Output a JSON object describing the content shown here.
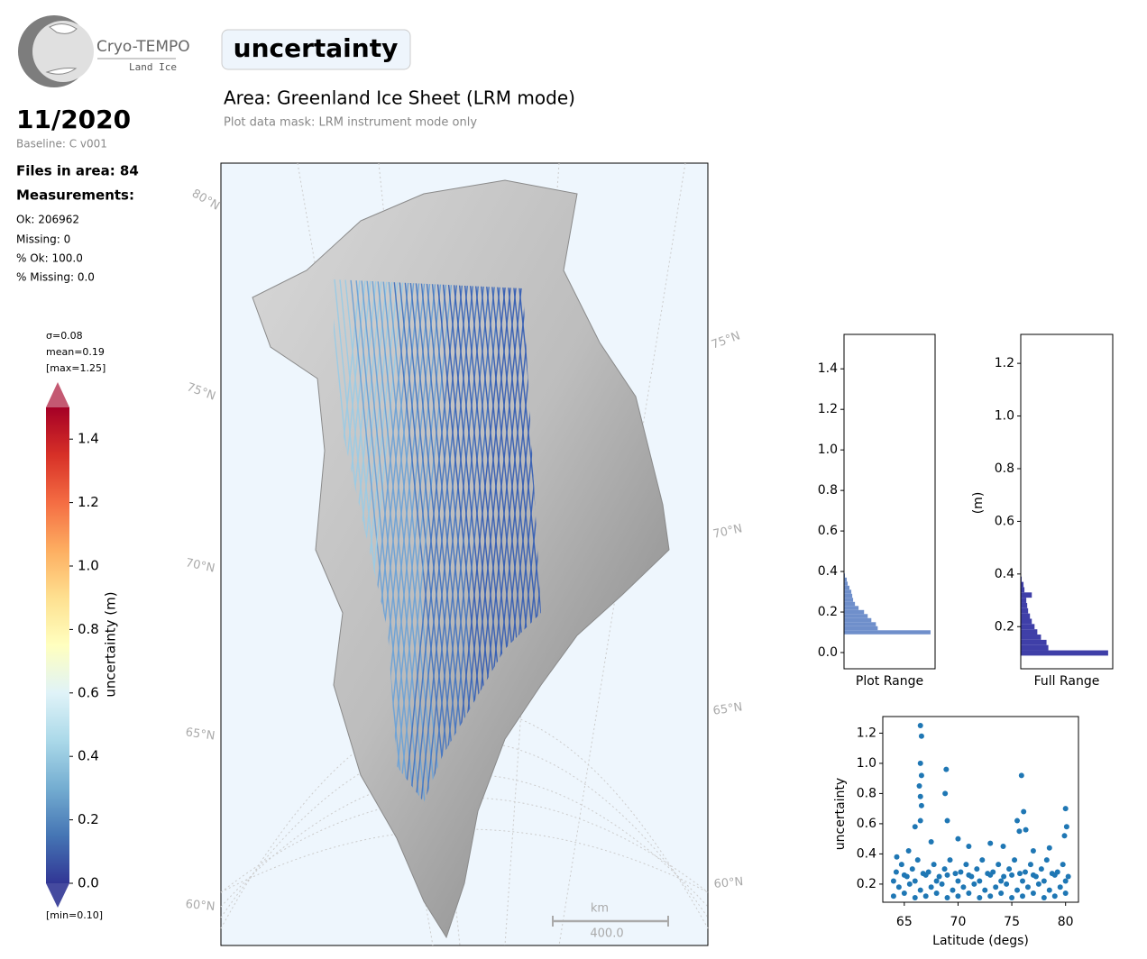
{
  "header": {
    "logo_title": "Cryo-TEMPO",
    "logo_subtitle": "Land Ice",
    "date": "11/2020",
    "baseline": "Baseline: C v001",
    "files": "Files in area: 84",
    "measurements": "Measurements:",
    "stats": [
      "Ok: 206962",
      "Missing: 0",
      "% Ok: 100.0",
      "% Missing: 0.0"
    ],
    "title": "uncertainty",
    "area": "Area: Greenland Ice Sheet (LRM mode)",
    "mask": "Plot data mask: LRM instrument mode only"
  },
  "chart_data": [
    {
      "type": "colorbar",
      "label": "uncertainty (m)",
      "ylim": [
        0,
        1.5
      ],
      "yticks": [
        {
          "value": 0,
          "label": "0.0"
        },
        0.2,
        0.4,
        0.6,
        0.8,
        {
          "value": 1,
          "label": "1.0"
        },
        1.2,
        1.4
      ],
      "colors": [
        "#313695",
        "#4575b4",
        "#74add1",
        "#abd9e9",
        "#e0f3f8",
        "#ffffbf",
        "#fee090",
        "#fdae61",
        "#f46d43",
        "#d73027",
        "#a50026"
      ],
      "stats_top": [
        "σ=0.08",
        "mean=0.19",
        "[max=1.25]"
      ],
      "stats_bottom": "[min=0.10]"
    },
    {
      "type": "map",
      "lat_labels_left": [
        "80°N",
        "75°N",
        "70°N",
        "65°N",
        "60°N"
      ],
      "lat_labels_right": [
        "75°N",
        "70°N",
        "65°N",
        "60°N"
      ],
      "scale_unit": "km",
      "scale_length": {
        "value": 400,
        "label": "400.0"
      },
      "background": "#eef6fd"
    },
    {
      "type": "histogram",
      "orientation": "horizontal",
      "xlabel": "Plot Range",
      "color": "#6f8fcb",
      "bins": [
        0.09,
        0.11,
        0.13,
        0.15,
        0.17,
        0.19,
        0.21,
        0.23,
        0.25,
        0.27,
        0.29,
        0.31,
        0.33,
        0.35,
        0.37,
        0.39
      ],
      "counts": [
        95,
        37,
        35,
        30,
        26,
        22,
        16,
        12,
        10,
        9,
        8,
        6,
        4,
        3,
        1
      ],
      "xlim": [
        0,
        100
      ],
      "ylim": [
        -0.08,
        1.57
      ],
      "yticks": [
        {
          "value": 0,
          "label": "0.0"
        },
        0.2,
        0.4,
        0.6,
        0.8,
        {
          "value": 1,
          "label": "1.0"
        },
        1.2,
        1.4
      ]
    },
    {
      "type": "histogram",
      "orientation": "horizontal",
      "xlabel": "Full Range",
      "ylabel": "(m)",
      "color": "#3f3fa8",
      "bins": [
        0.09,
        0.11,
        0.13,
        0.15,
        0.17,
        0.19,
        0.21,
        0.23,
        0.25,
        0.27,
        0.29,
        0.31,
        0.33,
        0.35,
        0.37,
        0.39
      ],
      "counts": [
        95,
        30,
        28,
        22,
        18,
        15,
        12,
        10,
        8,
        7,
        6,
        12,
        4,
        3,
        1
      ],
      "xlim": [
        0,
        100
      ],
      "ylim": [
        0.04,
        1.31
      ],
      "yticks": [
        0.2,
        0.4,
        0.6,
        0.8,
        {
          "value": 1,
          "label": "1.0"
        },
        1.2
      ]
    },
    {
      "type": "scatter",
      "xlabel": "Latitude (degs)",
      "ylabel": "uncertainty",
      "color": "#1f77b4",
      "xlim": [
        63,
        81.2
      ],
      "xticks": [
        65,
        70,
        75,
        80
      ],
      "ylim": [
        0.08,
        1.31
      ],
      "yticks": [
        0.2,
        0.4,
        0.6,
        0.8,
        {
          "value": 1,
          "label": "1.0"
        },
        1.2
      ],
      "x": [
        64,
        64.5,
        65,
        65.5,
        66,
        66.5,
        67,
        67.5,
        68,
        68.5,
        69,
        69.5,
        70,
        70.5,
        71,
        71.5,
        72,
        72.5,
        73,
        73.5,
        74,
        74.5,
        75,
        75.5,
        76,
        76.5,
        77,
        77.5,
        78,
        78.5,
        79,
        79.5,
        80,
        64.25,
        64.75,
        65.25,
        65.75,
        66.25,
        66.75,
        67.25,
        67.75,
        68.25,
        68.75,
        69.25,
        69.75,
        70.25,
        70.75,
        71.25,
        71.75,
        72.25,
        72.75,
        73.25,
        73.75,
        74.25,
        74.75,
        75.25,
        75.75,
        76.25,
        76.75,
        77.25,
        77.75,
        78.25,
        78.75,
        79.25,
        79.75,
        80.25,
        64,
        65,
        66,
        67,
        68,
        69,
        70,
        71,
        72,
        73,
        74,
        75,
        76,
        77,
        78,
        79,
        80,
        66.5,
        66.6,
        66.5,
        66.6,
        66.4,
        66.5,
        66.6,
        66.5,
        68.9,
        68.8,
        69.0,
        75.9,
        75.5,
        75.7,
        80.0,
        80.1,
        79.9,
        66.0,
        65.4,
        64.3,
        71,
        73,
        77,
        78.5,
        70,
        67.5,
        74.2,
        76.3,
        76.1
      ],
      "y": [
        0.12,
        0.18,
        0.14,
        0.2,
        0.11,
        0.16,
        0.12,
        0.18,
        0.14,
        0.2,
        0.11,
        0.16,
        0.12,
        0.18,
        0.14,
        0.2,
        0.11,
        0.16,
        0.12,
        0.18,
        0.14,
        0.2,
        0.11,
        0.16,
        0.12,
        0.18,
        0.14,
        0.2,
        0.11,
        0.16,
        0.12,
        0.18,
        0.14,
        0.28,
        0.33,
        0.25,
        0.3,
        0.36,
        0.27,
        0.28,
        0.33,
        0.25,
        0.3,
        0.36,
        0.27,
        0.28,
        0.33,
        0.25,
        0.3,
        0.36,
        0.27,
        0.28,
        0.33,
        0.25,
        0.3,
        0.36,
        0.27,
        0.28,
        0.33,
        0.25,
        0.3,
        0.36,
        0.27,
        0.28,
        0.33,
        0.25,
        0.22,
        0.26,
        0.22,
        0.26,
        0.22,
        0.26,
        0.22,
        0.26,
        0.22,
        0.26,
        0.22,
        0.26,
        0.22,
        0.26,
        0.22,
        0.26,
        0.22,
        1.25,
        1.18,
        1.0,
        0.92,
        0.85,
        0.78,
        0.72,
        0.62,
        0.96,
        0.8,
        0.62,
        0.92,
        0.62,
        0.55,
        0.7,
        0.58,
        0.52,
        0.58,
        0.42,
        0.38,
        0.45,
        0.47,
        0.42,
        0.44,
        0.5,
        0.48,
        0.45,
        0.56,
        0.68
      ]
    }
  ]
}
